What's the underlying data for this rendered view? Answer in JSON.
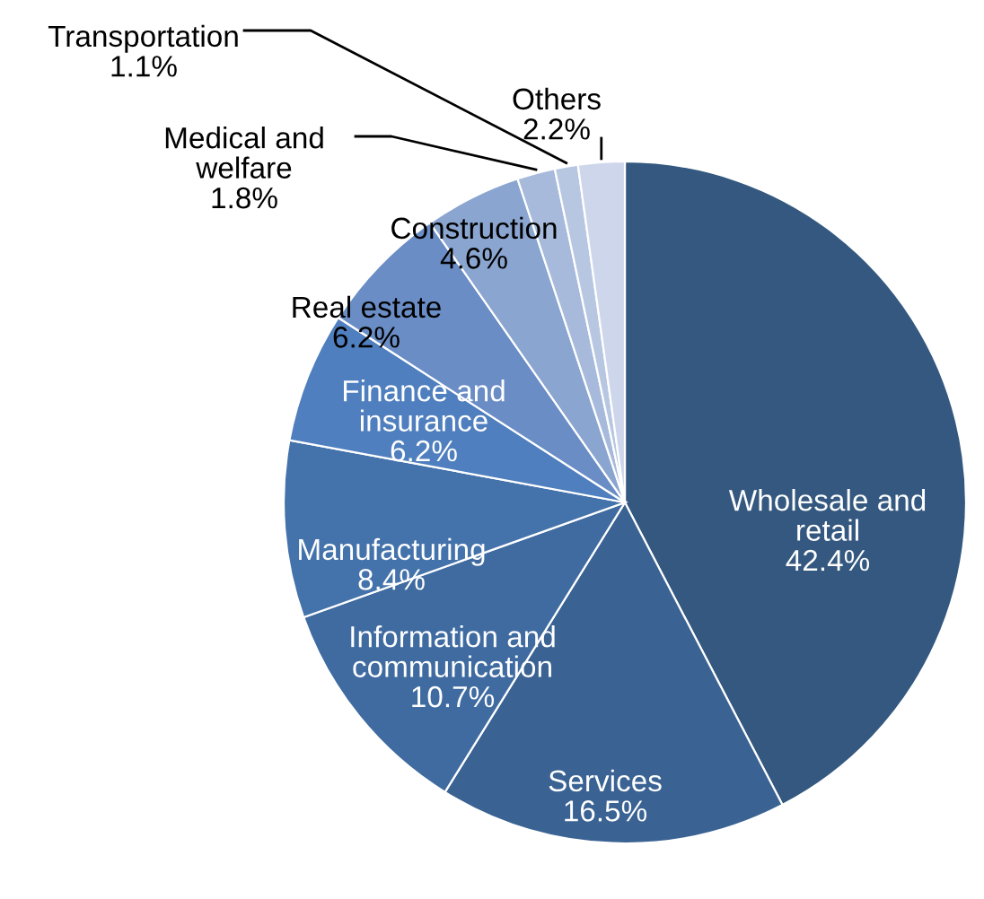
{
  "chart_data": {
    "type": "pie",
    "categories": [
      "Wholesale and\nretail",
      "Services",
      "Information and\ncommunication",
      "Manufacturing",
      "Finance and\ninsurance",
      "Real estate",
      "Construction",
      "Medical and\nwelfare",
      "Transportation",
      "Others"
    ],
    "values": [
      42.4,
      16.5,
      10.7,
      8.4,
      6.2,
      6.2,
      4.6,
      1.8,
      1.1,
      2.2
    ],
    "colors": [
      "#34587f",
      "#3a6393",
      "#3f6ba0",
      "#4472ab",
      "#4f7fbe",
      "#6a8dc6",
      "#8aa5cf",
      "#a7badb",
      "#b8c7e1",
      "#cdd6ea"
    ],
    "value_labels": [
      "42.4%",
      "16.5%",
      "10.7%",
      "8.4%",
      "6.2%",
      "6.2%",
      "4.6%",
      "1.8%",
      "1.1%",
      "2.2%"
    ],
    "legend": false
  }
}
